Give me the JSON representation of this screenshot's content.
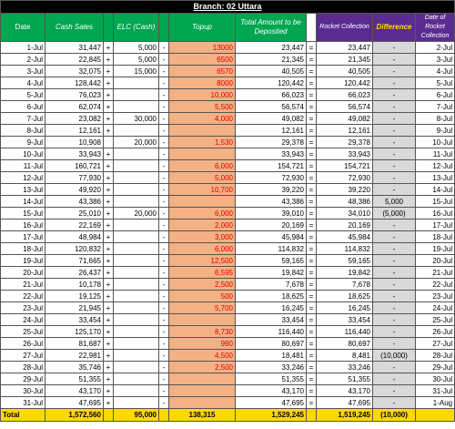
{
  "title": "Branch: 02 Uttara",
  "headers": {
    "date": "Date",
    "cash_sales": "Cash Sales",
    "elc": "ELC (Cash)",
    "topup": "Topup",
    "total_deposit": "Total Amount to be Deposited",
    "rocket": "Rocket Collection",
    "difference": "Difference",
    "rocket_date": "Date of Rocket Collection"
  },
  "rows": [
    {
      "date": "1-Jul",
      "cash": "31,447",
      "p1": "+",
      "elc": "5,000",
      "m": "-",
      "topup": "13000",
      "total": "23,447",
      "eq": "=",
      "rocket": "23,447",
      "diff": "-",
      "rdate": "2-Jul"
    },
    {
      "date": "2-Jul",
      "cash": "22,845",
      "p1": "+",
      "elc": "5,000",
      "m": "-",
      "topup": "6500",
      "total": "21,345",
      "eq": "=",
      "rocket": "21,345",
      "diff": "-",
      "rdate": "3-Jul"
    },
    {
      "date": "3-Jul",
      "cash": "32,075",
      "p1": "+",
      "elc": "15,000",
      "m": "-",
      "topup": "6570",
      "total": "40,505",
      "eq": "=",
      "rocket": "40,505",
      "diff": "-",
      "rdate": "4-Jul"
    },
    {
      "date": "4-Jul",
      "cash": "128,442",
      "p1": "+",
      "elc": "",
      "m": "-",
      "topup": "8000",
      "total": "120,442",
      "eq": "=",
      "rocket": "120,442",
      "diff": "-",
      "rdate": "5-Jul"
    },
    {
      "date": "5-Jul",
      "cash": "76,023",
      "p1": "+",
      "elc": "",
      "m": "-",
      "topup": "10,000",
      "total": "66,023",
      "eq": "=",
      "rocket": "66,023",
      "diff": "-",
      "rdate": "6-Jul"
    },
    {
      "date": "6-Jul",
      "cash": "62,074",
      "p1": "+",
      "elc": "",
      "m": "-",
      "topup": "5,500",
      "total": "56,574",
      "eq": "=",
      "rocket": "56,574",
      "diff": "-",
      "rdate": "7-Jul"
    },
    {
      "date": "7-Jul",
      "cash": "23,082",
      "p1": "+",
      "elc": "30,000",
      "m": "-",
      "topup": "4,000",
      "total": "49,082",
      "eq": "=",
      "rocket": "49,082",
      "diff": "-",
      "rdate": "8-Jul"
    },
    {
      "date": "8-Jul",
      "cash": "12,161",
      "p1": "+",
      "elc": "",
      "m": "-",
      "topup": "",
      "total": "12,161",
      "eq": "=",
      "rocket": "12,161",
      "diff": "-",
      "rdate": "9-Jul"
    },
    {
      "date": "9-Jul",
      "cash": "10,908",
      "p1": "",
      "elc": "20,000",
      "m": "-",
      "topup": "1,530",
      "total": "29,378",
      "eq": "=",
      "rocket": "29,378",
      "diff": "-",
      "rdate": "10-Jul"
    },
    {
      "date": "10-Jul",
      "cash": "33,943",
      "p1": "+",
      "elc": "",
      "m": "-",
      "topup": "",
      "total": "33,943",
      "eq": "=",
      "rocket": "33,943",
      "diff": "-",
      "rdate": "11-Jul"
    },
    {
      "date": "11-Jul",
      "cash": "160,721",
      "p1": "+",
      "elc": "",
      "m": "-",
      "topup": "6,000",
      "total": "154,721",
      "eq": "=",
      "rocket": "154,721",
      "diff": "-",
      "rdate": "12-Jul"
    },
    {
      "date": "12-Jul",
      "cash": "77,930",
      "p1": "+",
      "elc": "",
      "m": "-",
      "topup": "5,000",
      "total": "72,930",
      "eq": "=",
      "rocket": "72,930",
      "diff": "-",
      "rdate": "13-Jul"
    },
    {
      "date": "13-Jul",
      "cash": "49,920",
      "p1": "+",
      "elc": "",
      "m": "-",
      "topup": "10,700",
      "total": "39,220",
      "eq": "=",
      "rocket": "39,220",
      "diff": "-",
      "rdate": "14-Jul"
    },
    {
      "date": "14-Jul",
      "cash": "43,386",
      "p1": "+",
      "elc": "",
      "m": "-",
      "topup": "",
      "total": "43,386",
      "eq": "=",
      "rocket": "48,386",
      "diff": "5,000",
      "rdate": "15-Jul"
    },
    {
      "date": "15-Jul",
      "cash": "25,010",
      "p1": "+",
      "elc": "20,000",
      "m": "-",
      "topup": "6,000",
      "total": "39,010",
      "eq": "=",
      "rocket": "34,010",
      "diff": "(5,000)",
      "rdate": "16-Jul"
    },
    {
      "date": "16-Jul",
      "cash": "22,169",
      "p1": "+",
      "elc": "",
      "m": "-",
      "topup": "2,000",
      "total": "20,169",
      "eq": "=",
      "rocket": "20,169",
      "diff": "-",
      "rdate": "17-Jul"
    },
    {
      "date": "17-Jul",
      "cash": "48,984",
      "p1": "+",
      "elc": "",
      "m": "-",
      "topup": "3,000",
      "total": "45,984",
      "eq": "=",
      "rocket": "45,984",
      "diff": "-",
      "rdate": "18-Jul"
    },
    {
      "date": "18-Jul",
      "cash": "120,832",
      "p1": "+",
      "elc": "",
      "m": "-",
      "topup": "6,000",
      "total": "114,832",
      "eq": "=",
      "rocket": "114,832",
      "diff": "-",
      "rdate": "19-Jul"
    },
    {
      "date": "19-Jul",
      "cash": "71,665",
      "p1": "+",
      "elc": "",
      "m": "-",
      "topup": "12,500",
      "total": "59,165",
      "eq": "=",
      "rocket": "59,165",
      "diff": "-",
      "rdate": "20-Jul"
    },
    {
      "date": "20-Jul",
      "cash": "26,437",
      "p1": "+",
      "elc": "",
      "m": "-",
      "topup": "6,595",
      "total": "19,842",
      "eq": "=",
      "rocket": "19,842",
      "diff": "-",
      "rdate": "21-Jul"
    },
    {
      "date": "21-Jul",
      "cash": "10,178",
      "p1": "+",
      "elc": "",
      "m": "-",
      "topup": "2,500",
      "total": "7,678",
      "eq": "=",
      "rocket": "7,678",
      "diff": "-",
      "rdate": "22-Jul"
    },
    {
      "date": "22-Jul",
      "cash": "19,125",
      "p1": "+",
      "elc": "",
      "m": "-",
      "topup": "500",
      "total": "18,625",
      "eq": "=",
      "rocket": "18,625",
      "diff": "-",
      "rdate": "23-Jul"
    },
    {
      "date": "23-Jul",
      "cash": "21,945",
      "p1": "+",
      "elc": "",
      "m": "-",
      "topup": "5,700",
      "total": "16,245",
      "eq": "=",
      "rocket": "16,245",
      "diff": "-",
      "rdate": "24-Jul"
    },
    {
      "date": "24-Jul",
      "cash": "33,454",
      "p1": "+",
      "elc": "",
      "m": "-",
      "topup": "",
      "total": "33,454",
      "eq": "=",
      "rocket": "33,454",
      "diff": "-",
      "rdate": "25-Jul"
    },
    {
      "date": "25-Jul",
      "cash": "125,170",
      "p1": "+",
      "elc": "",
      "m": "-",
      "topup": "8,730",
      "total": "116,440",
      "eq": "=",
      "rocket": "116,440",
      "diff": "-",
      "rdate": "26-Jul"
    },
    {
      "date": "26-Jul",
      "cash": "81,687",
      "p1": "+",
      "elc": "",
      "m": "-",
      "topup": "990",
      "total": "80,697",
      "eq": "=",
      "rocket": "80,697",
      "diff": "-",
      "rdate": "27-Jul"
    },
    {
      "date": "27-Jul",
      "cash": "22,981",
      "p1": "+",
      "elc": "",
      "m": "-",
      "topup": "4,500",
      "total": "18,481",
      "eq": "=",
      "rocket": "8,481",
      "diff": "(10,000)",
      "rdate": "28-Jul"
    },
    {
      "date": "28-Jul",
      "cash": "35,746",
      "p1": "+",
      "elc": "",
      "m": "-",
      "topup": "2,500",
      "total": "33,246",
      "eq": "=",
      "rocket": "33,246",
      "diff": "-",
      "rdate": "29-Jul"
    },
    {
      "date": "29-Jul",
      "cash": "51,355",
      "p1": "+",
      "elc": "",
      "m": "-",
      "topup": "",
      "total": "51,355",
      "eq": "=",
      "rocket": "51,355",
      "diff": "-",
      "rdate": "30-Jul"
    },
    {
      "date": "30-Jul",
      "cash": "43,170",
      "p1": "+",
      "elc": "",
      "m": "-",
      "topup": "",
      "total": "43,170",
      "eq": "=",
      "rocket": "43,170",
      "diff": "-",
      "rdate": "31-Jul"
    },
    {
      "date": "31-Jul",
      "cash": "47,695",
      "p1": "+",
      "elc": "",
      "m": "-",
      "topup": "",
      "total": "47,695",
      "eq": "=",
      "rocket": "47,695",
      "diff": "-",
      "rdate": "1-Aug"
    }
  ],
  "total": {
    "label": "Total",
    "cash": "1,572,560",
    "elc": "95,000",
    "topup": "138,315",
    "deposit": "1,529,245",
    "rocket": "1,519,245",
    "diff": "(10,000)"
  },
  "colors": {
    "header_green": "#00a650",
    "header_purple": "#5b2b91",
    "topup_fill": "#f4b183",
    "topup_text": "#e00000",
    "total_yellow": "#ffd800",
    "diff_fill": "#d9d9d9"
  }
}
